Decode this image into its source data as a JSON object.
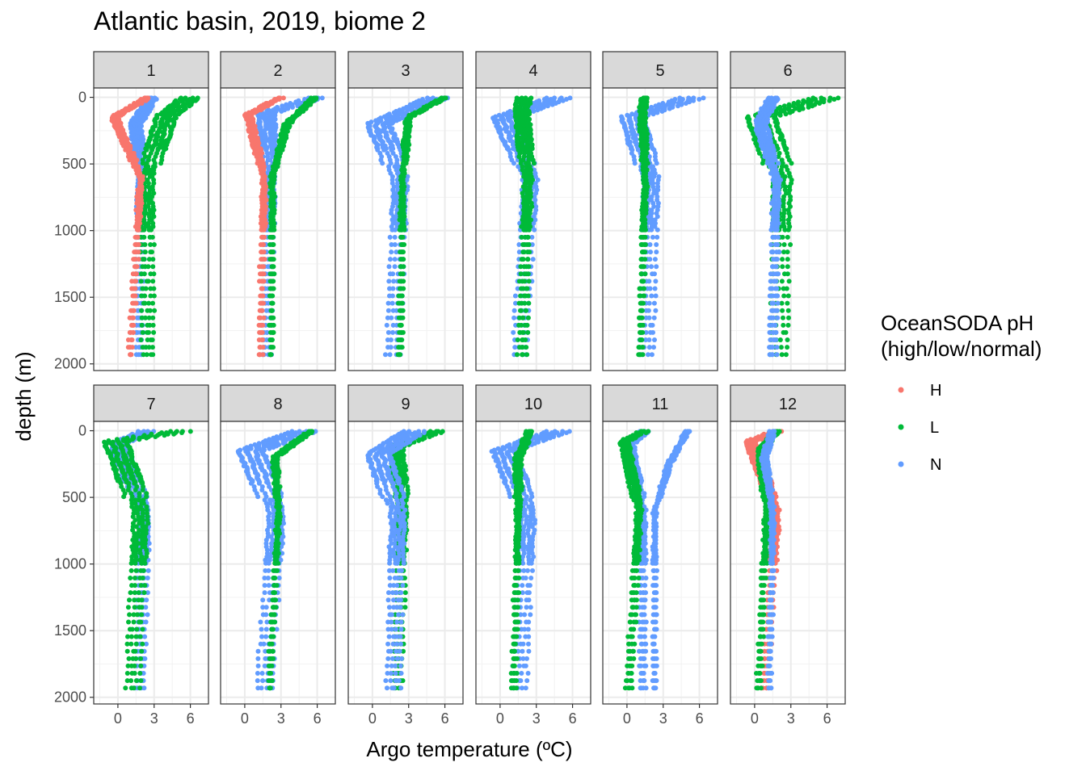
{
  "chart_data": {
    "type": "scatter",
    "title": "Atlantic basin, 2019, biome 2",
    "xlabel": "Argo temperature (ºC)",
    "ylabel": "depth (m)",
    "xlim": [
      -2,
      7.5
    ],
    "ylim": [
      2050,
      -70
    ],
    "x_ticks": [
      0,
      3,
      6
    ],
    "x_tick_labels": [
      "0",
      "3",
      "6"
    ],
    "y_ticks": [
      0,
      500,
      1000,
      1500,
      2000
    ],
    "y_tick_labels": [
      "0",
      "500",
      "1000",
      "1500",
      "2000"
    ],
    "grid": true,
    "facet_by": "month",
    "legend": {
      "title": [
        "OceanSODA pH",
        "(high/low/normal)"
      ],
      "position": "right",
      "entries": [
        {
          "key": "H",
          "label": "H",
          "color": "#F8766D"
        },
        {
          "key": "L",
          "label": "L",
          "color": "#00BA38"
        },
        {
          "key": "N",
          "label": "N",
          "color": "#619CFF"
        }
      ]
    },
    "panels": [
      {
        "label": "1",
        "profiles": [
          {
            "cat": "N",
            "surface_t": 2.8,
            "min_t": 1.5,
            "min_depth": 200,
            "deep_t": 1.9,
            "bottom_t": 1.8,
            "jitter": 0.8
          },
          {
            "cat": "L",
            "surface_t": 6.0,
            "min_t": 4.0,
            "min_depth": 140,
            "deep_t": 2.4,
            "bottom_t": 2.5,
            "jitter": 1.5
          },
          {
            "cat": "H",
            "surface_t": 2.5,
            "min_t": -0.3,
            "min_depth": 150,
            "deep_t": 1.9,
            "bottom_t": 1.0,
            "jitter": 0.4
          }
        ]
      },
      {
        "label": "2",
        "profiles": [
          {
            "cat": "N",
            "surface_t": 6.0,
            "min_t": 1.8,
            "min_depth": 120,
            "deep_t": 2.1,
            "bottom_t": 1.8,
            "jitter": 1.2
          },
          {
            "cat": "L",
            "surface_t": 5.8,
            "min_t": 3.5,
            "min_depth": 200,
            "deep_t": 2.3,
            "bottom_t": 2.2,
            "jitter": 0.3
          },
          {
            "cat": "H",
            "surface_t": 3.0,
            "min_t": 0.3,
            "min_depth": 130,
            "deep_t": 1.6,
            "bottom_t": 1.3,
            "jitter": 0.4
          }
        ]
      },
      {
        "label": "3",
        "profiles": [
          {
            "cat": "N",
            "surface_t": 5.5,
            "min_t": 0.5,
            "min_depth": 200,
            "deep_t": 2.3,
            "bottom_t": 1.7,
            "jitter": 1.8
          },
          {
            "cat": "L",
            "surface_t": 6.0,
            "min_t": 3.0,
            "min_depth": 150,
            "deep_t": 2.5,
            "bottom_t": 2.3,
            "jitter": 0.3
          }
        ]
      },
      {
        "label": "4",
        "profiles": [
          {
            "cat": "N",
            "surface_t": 5.0,
            "min_t": 0.4,
            "min_depth": 150,
            "deep_t": 2.5,
            "bottom_t": 1.6,
            "jitter": 1.8
          },
          {
            "cat": "L",
            "surface_t": 2.0,
            "min_t": 1.8,
            "min_depth": 100,
            "deep_t": 2.3,
            "bottom_t": 1.8,
            "jitter": 1.0
          }
        ]
      },
      {
        "label": "5",
        "profiles": [
          {
            "cat": "N",
            "surface_t": 5.5,
            "min_t": 0.4,
            "min_depth": 150,
            "deep_t": 2.0,
            "bottom_t": 1.6,
            "jitter": 1.8
          },
          {
            "cat": "L",
            "surface_t": 1.5,
            "min_t": 1.3,
            "min_depth": 100,
            "deep_t": 1.5,
            "bottom_t": 1.1,
            "jitter": 0.4
          }
        ]
      },
      {
        "label": "6",
        "profiles": [
          {
            "cat": "L",
            "surface_t": 6.0,
            "min_t": 0.5,
            "min_depth": 150,
            "deep_t": 2.3,
            "bottom_t": 2.0,
            "jitter": 2.2
          },
          {
            "cat": "N",
            "surface_t": 1.5,
            "min_t": 0.5,
            "min_depth": 200,
            "deep_t": 1.8,
            "bottom_t": 1.5,
            "jitter": 0.8
          }
        ]
      },
      {
        "label": "7",
        "profiles": [
          {
            "cat": "N",
            "surface_t": 2.5,
            "min_t": 0.0,
            "min_depth": 100,
            "deep_t": 2.2,
            "bottom_t": 1.8,
            "jitter": 1.2
          },
          {
            "cat": "L",
            "surface_t": 5.5,
            "min_t": -0.2,
            "min_depth": 80,
            "deep_t": 1.9,
            "bottom_t": 1.2,
            "jitter": 1.8
          }
        ]
      },
      {
        "label": "8",
        "profiles": [
          {
            "cat": "N",
            "surface_t": 5.0,
            "min_t": 0.5,
            "min_depth": 150,
            "deep_t": 2.6,
            "bottom_t": 1.6,
            "jitter": 2.0
          },
          {
            "cat": "L",
            "surface_t": 5.5,
            "min_t": 2.5,
            "min_depth": 200,
            "deep_t": 2.8,
            "bottom_t": 2.0,
            "jitter": 0.3
          }
        ]
      },
      {
        "label": "9",
        "profiles": [
          {
            "cat": "L",
            "surface_t": 5.5,
            "min_t": 2.0,
            "min_depth": 120,
            "deep_t": 2.5,
            "bottom_t": 2.1,
            "jitter": 1.0
          },
          {
            "cat": "N",
            "surface_t": 3.5,
            "min_t": 0.5,
            "min_depth": 180,
            "deep_t": 2.1,
            "bottom_t": 1.7,
            "jitter": 1.8
          }
        ]
      },
      {
        "label": "10",
        "profiles": [
          {
            "cat": "N",
            "surface_t": 5.0,
            "min_t": 0.3,
            "min_depth": 150,
            "deep_t": 2.3,
            "bottom_t": 1.6,
            "jitter": 1.8
          },
          {
            "cat": "L",
            "surface_t": 2.5,
            "min_t": 1.5,
            "min_depth": 200,
            "deep_t": 1.5,
            "bottom_t": 1.1,
            "jitter": 0.4
          }
        ]
      },
      {
        "label": "11",
        "profiles": [
          {
            "cat": "N",
            "surface_t": 5.0,
            "min_t": 3.5,
            "min_depth": 250,
            "deep_t": 2.3,
            "bottom_t": 2.3,
            "jitter": 0.2
          },
          {
            "cat": "N",
            "surface_t": 1.5,
            "min_t": 0.2,
            "min_depth": 100,
            "deep_t": 1.3,
            "bottom_t": 1.3,
            "jitter": 0.6
          },
          {
            "cat": "L",
            "surface_t": 1.5,
            "min_t": -0.2,
            "min_depth": 80,
            "deep_t": 1.0,
            "bottom_t": 0.1,
            "jitter": 0.6
          }
        ]
      },
      {
        "label": "12",
        "profiles": [
          {
            "cat": "H",
            "surface_t": 2.0,
            "min_t": -0.3,
            "min_depth": 80,
            "deep_t": 1.8,
            "bottom_t": 0.8,
            "jitter": 0.8
          },
          {
            "cat": "L",
            "surface_t": 1.8,
            "min_t": 0.5,
            "min_depth": 150,
            "deep_t": 1.0,
            "bottom_t": 0.3,
            "jitter": 0.4
          },
          {
            "cat": "N",
            "surface_t": 1.5,
            "min_t": 0.8,
            "min_depth": 200,
            "deep_t": 1.5,
            "bottom_t": 1.2,
            "jitter": 0.3
          }
        ]
      }
    ]
  }
}
